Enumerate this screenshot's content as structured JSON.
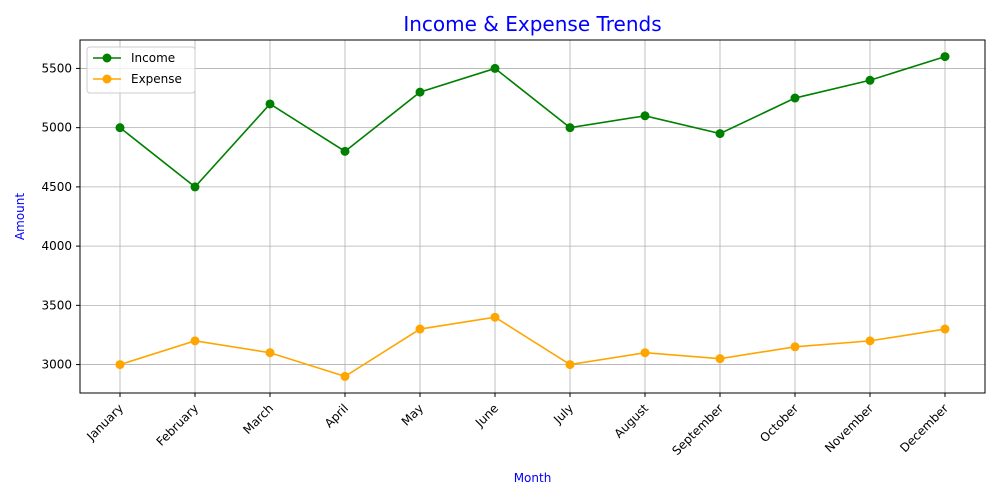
{
  "chart_data": {
    "type": "line",
    "title": "Income & Expense Trends",
    "xlabel": "Month",
    "ylabel": "Amount",
    "categories": [
      "January",
      "February",
      "March",
      "April",
      "May",
      "June",
      "July",
      "August",
      "September",
      "October",
      "November",
      "December"
    ],
    "series": [
      {
        "name": "Income",
        "color": "#008000",
        "values": [
          5000,
          4500,
          5200,
          4800,
          5300,
          5500,
          5000,
          5100,
          4950,
          5250,
          5400,
          5600
        ]
      },
      {
        "name": "Expense",
        "color": "#ffa500",
        "values": [
          3000,
          3200,
          3100,
          2900,
          3300,
          3400,
          3000,
          3100,
          3050,
          3150,
          3200,
          3300
        ]
      }
    ],
    "ylim": [
      2760,
      5740
    ],
    "yticks": [
      3000,
      3500,
      4000,
      4500,
      5000,
      5500
    ],
    "grid": true,
    "legend_position": "top-left",
    "label_color": "#0000ff"
  }
}
